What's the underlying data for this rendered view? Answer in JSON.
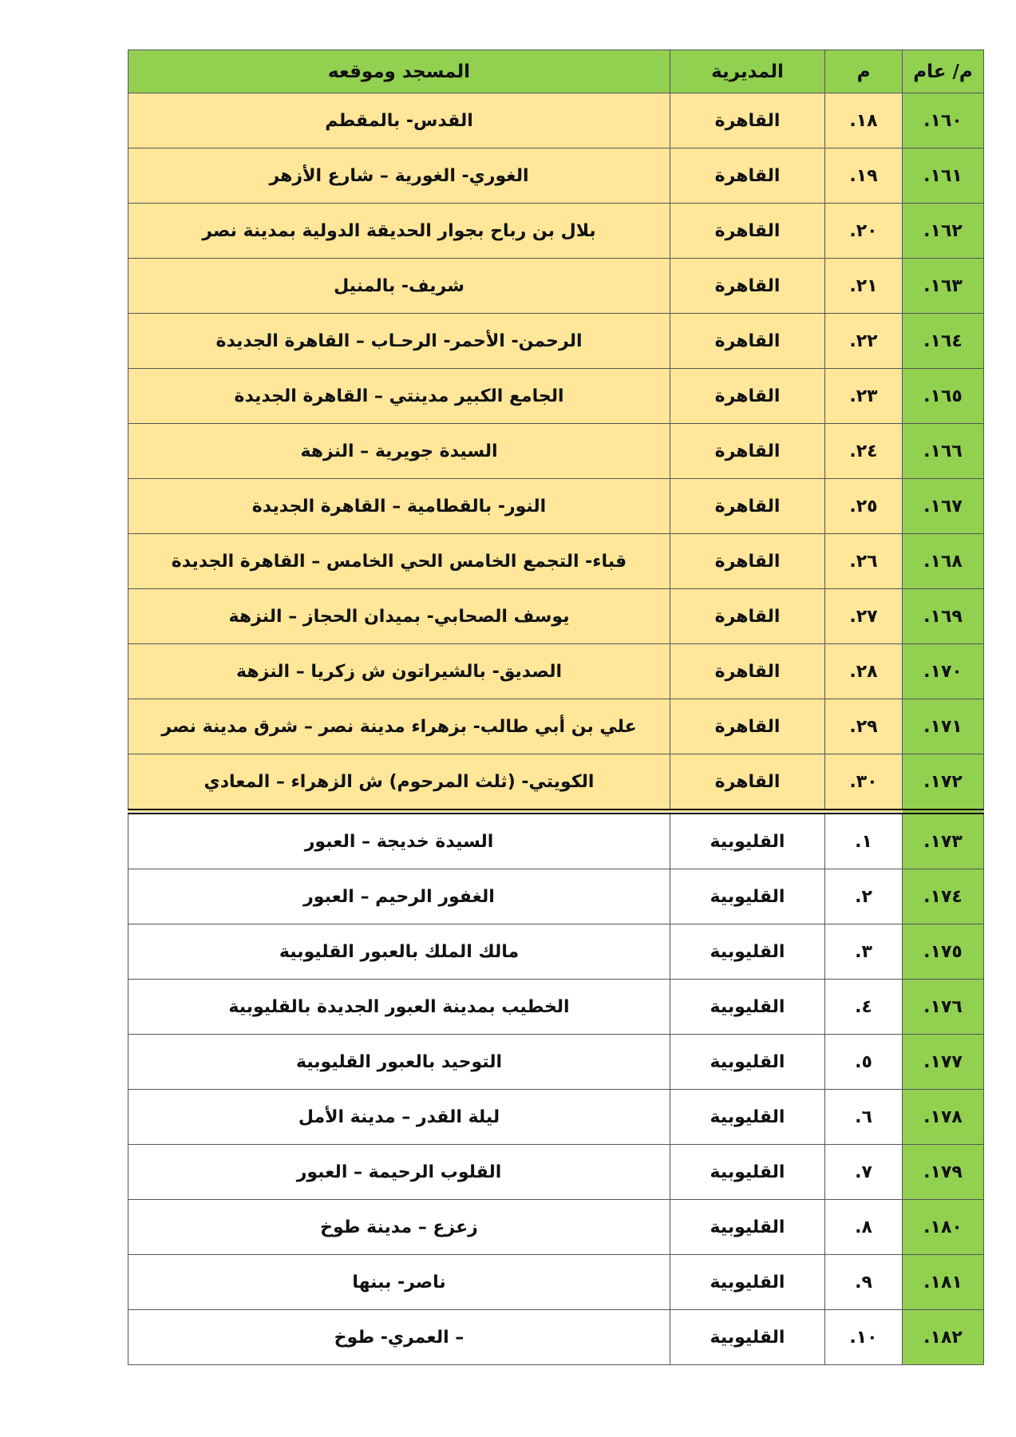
{
  "colors": {
    "header": "#92d050",
    "cairo_rows": "#ffe699",
    "qalyubia_rows": "#ffffff"
  },
  "headers": {
    "general_no": "م/ عام",
    "no": "م",
    "directorate": "المديرية",
    "mosque": "المسجد وموقعه"
  },
  "rows": [
    {
      "general": "١٦٠.",
      "no": "١٨.",
      "dir": "القاهرة",
      "mosque": "القدس- بالمقطم"
    },
    {
      "general": "١٦١.",
      "no": "١٩.",
      "dir": "القاهرة",
      "mosque": "الغوري- الغورية – شارع الأزهر"
    },
    {
      "general": "١٦٢.",
      "no": "٢٠.",
      "dir": "القاهرة",
      "mosque": "بلال بن رباح بجوار الحديقة الدولية بمدينة نصر"
    },
    {
      "general": "١٦٣.",
      "no": "٢١.",
      "dir": "القاهرة",
      "mosque": "شريف- بالمنيل"
    },
    {
      "general": "١٦٤.",
      "no": "٢٢.",
      "dir": "القاهرة",
      "mosque": "الرحمن- الأحمر- الرحـاب – القاهرة الجديدة"
    },
    {
      "general": "١٦٥.",
      "no": "٢٣.",
      "dir": "القاهرة",
      "mosque": "الجامع الكبير مدينتي – القاهرة الجديدة"
    },
    {
      "general": "١٦٦.",
      "no": "٢٤.",
      "dir": "القاهرة",
      "mosque": "السيدة جويرية – النزهة"
    },
    {
      "general": "١٦٧.",
      "no": "٢٥.",
      "dir": "القاهرة",
      "mosque": "النور- بالقطامية – القاهرة الجديدة"
    },
    {
      "general": "١٦٨.",
      "no": "٢٦.",
      "dir": "القاهرة",
      "mosque": "قباء- التجمع الخامس الحي الخامس – القاهرة الجديدة"
    },
    {
      "general": "١٦٩.",
      "no": "٢٧.",
      "dir": "القاهرة",
      "mosque": "يوسف الصحابي- بميدان الحجاز – النزهة"
    },
    {
      "general": "١٧٠.",
      "no": "٢٨.",
      "dir": "القاهرة",
      "mosque": "الصديق- بالشيراتون ش زكريا – النزهة"
    },
    {
      "general": "١٧١.",
      "no": "٢٩.",
      "dir": "القاهرة",
      "mosque": "علي بن أبي طالب- بزهراء مدينة نصر – شرق مدينة نصر"
    },
    {
      "general": "١٧٢.",
      "no": "٣٠.",
      "dir": "القاهرة",
      "mosque": "الكويتي- (ثلث المرحوم) ش الزهراء – المعادي"
    },
    {
      "general": "١٧٣.",
      "no": "١.",
      "dir": "القليوبية",
      "mosque": "السيدة خديجة – العبور"
    },
    {
      "general": "١٧٤.",
      "no": "٢.",
      "dir": "القليوبية",
      "mosque": "الغفور الرحيم – العبور"
    },
    {
      "general": "١٧٥.",
      "no": "٣.",
      "dir": "القليوبية",
      "mosque": "مالك الملك بالعبور القليوبية"
    },
    {
      "general": "١٧٦.",
      "no": "٤.",
      "dir": "القليوبية",
      "mosque": "الخطيب بمدينة العبور الجديدة بالقليوبية"
    },
    {
      "general": "١٧٧.",
      "no": "٥.",
      "dir": "القليوبية",
      "mosque": "التوحيد بالعبور القليوبية"
    },
    {
      "general": "١٧٨.",
      "no": "٦.",
      "dir": "القليوبية",
      "mosque": "ليلة القدر – مدينة الأمل"
    },
    {
      "general": "١٧٩.",
      "no": "٧.",
      "dir": "القليوبية",
      "mosque": "القلوب الرحيمة – العبور"
    },
    {
      "general": "١٨٠.",
      "no": "٨.",
      "dir": "القليوبية",
      "mosque": "زعزع – مدينة طوخ"
    },
    {
      "general": "١٨١.",
      "no": "٩.",
      "dir": "القليوبية",
      "mosque": "ناصر- ببنها"
    },
    {
      "general": "١٨٢.",
      "no": "١٠.",
      "dir": "القليوبية",
      "mosque": "– العمري- طوخ"
    }
  ]
}
